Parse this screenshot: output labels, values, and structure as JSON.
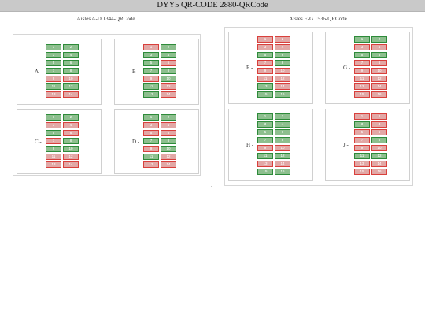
{
  "page_title": "DYY5 QR-CODE 2880-QRCode",
  "colors": {
    "ok": "#2e8b3a",
    "alert": "#d9403c"
  },
  "groups": [
    {
      "title": "Aisles A-D 1344-QRCode",
      "aisles": [
        {
          "label": "A -",
          "bins": [
            [
              "1",
              "2",
              "g",
              "g"
            ],
            [
              "3",
              "4",
              "g",
              "g"
            ],
            [
              "5",
              "6",
              "g",
              "g"
            ],
            [
              "7",
              "8",
              "g",
              "g"
            ],
            [
              "9",
              "10",
              "r",
              "r"
            ],
            [
              "11",
              "12",
              "g",
              "g"
            ],
            [
              "13",
              "14",
              "r",
              "r"
            ]
          ]
        },
        {
          "label": "B -",
          "bins": [
            [
              "1",
              "2",
              "r",
              "g"
            ],
            [
              "3",
              "4",
              "g",
              "g"
            ],
            [
              "5",
              "6",
              "g",
              "r"
            ],
            [
              "7",
              "8",
              "g",
              "g"
            ],
            [
              "9",
              "10",
              "r",
              "g"
            ],
            [
              "11",
              "12",
              "g",
              "r"
            ],
            [
              "13",
              "14",
              "g",
              "r"
            ]
          ]
        },
        {
          "label": "C -",
          "bins": [
            [
              "1",
              "2",
              "g",
              "g"
            ],
            [
              "3",
              "4",
              "r",
              "r"
            ],
            [
              "5",
              "6",
              "g",
              "r"
            ],
            [
              "7",
              "8",
              "r",
              "g"
            ],
            [
              "9",
              "10",
              "g",
              "g"
            ],
            [
              "11",
              "12",
              "r",
              "r"
            ],
            [
              "13",
              "14",
              "r",
              "r"
            ]
          ]
        },
        {
          "label": "D -",
          "bins": [
            [
              "1",
              "2",
              "g",
              "g"
            ],
            [
              "3",
              "4",
              "r",
              "r"
            ],
            [
              "5",
              "6",
              "r",
              "r"
            ],
            [
              "7",
              "8",
              "g",
              "g"
            ],
            [
              "9",
              "10",
              "r",
              "g"
            ],
            [
              "11",
              "12",
              "g",
              "r"
            ],
            [
              "13",
              "14",
              "r",
              "r"
            ]
          ]
        }
      ]
    },
    {
      "title": "Aisles E-G 1536-QRCode",
      "aisles": [
        {
          "label": "E -",
          "bins": [
            [
              "1",
              "2",
              "r",
              "r"
            ],
            [
              "3",
              "4",
              "r",
              "r"
            ],
            [
              "5",
              "6",
              "g",
              "g"
            ],
            [
              "7",
              "8",
              "r",
              "g"
            ],
            [
              "9",
              "10",
              "r",
              "r"
            ],
            [
              "11",
              "12",
              "r",
              "r"
            ],
            [
              "13",
              "14",
              "g",
              "r"
            ],
            [
              "15",
              "16",
              "g",
              "g"
            ]
          ]
        },
        {
          "label": "G -",
          "bins": [
            [
              "1",
              "2",
              "g",
              "g"
            ],
            [
              "3",
              "4",
              "r",
              "r"
            ],
            [
              "5",
              "6",
              "g",
              "g"
            ],
            [
              "7",
              "8",
              "r",
              "r"
            ],
            [
              "9",
              "10",
              "r",
              "r"
            ],
            [
              "11",
              "12",
              "r",
              "r"
            ],
            [
              "13",
              "14",
              "r",
              "r"
            ],
            [
              "15",
              "16",
              "r",
              "r"
            ]
          ]
        },
        {
          "label": "H -",
          "bins": [
            [
              "1",
              "2",
              "g",
              "g"
            ],
            [
              "3",
              "4",
              "g",
              "g"
            ],
            [
              "5",
              "6",
              "g",
              "g"
            ],
            [
              "7",
              "8",
              "g",
              "g"
            ],
            [
              "9",
              "10",
              "r",
              "r"
            ],
            [
              "11",
              "12",
              "g",
              "g"
            ],
            [
              "13",
              "14",
              "r",
              "r"
            ],
            [
              "15",
              "16",
              "g",
              "g"
            ]
          ]
        },
        {
          "label": "J -",
          "bins": [
            [
              "1",
              "2",
              "r",
              "r"
            ],
            [
              "3",
              "4",
              "g",
              "r"
            ],
            [
              "5",
              "6",
              "r",
              "r"
            ],
            [
              "7",
              "8",
              "r",
              "g"
            ],
            [
              "9",
              "10",
              "r",
              "r"
            ],
            [
              "11",
              "12",
              "g",
              "g"
            ],
            [
              "13",
              "14",
              "r",
              "r"
            ],
            [
              "15",
              "16",
              "r",
              "r"
            ]
          ]
        }
      ]
    }
  ]
}
